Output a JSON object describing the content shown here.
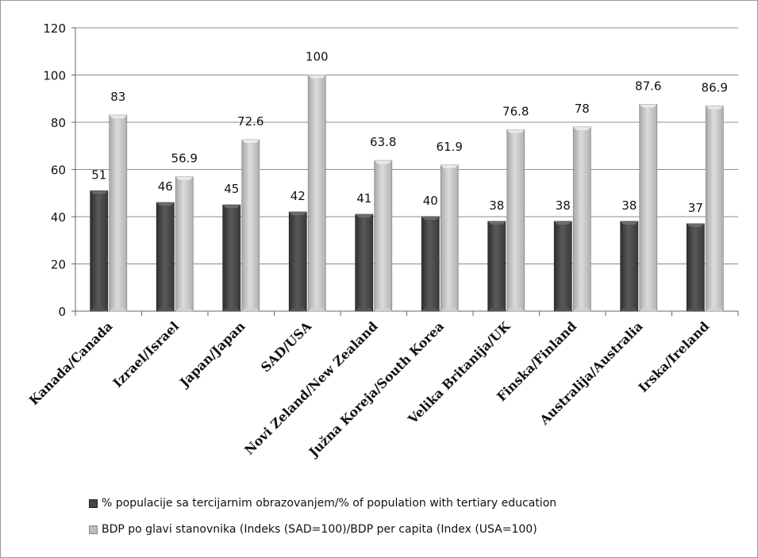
{
  "chart_data": {
    "type": "bar",
    "categories": [
      "Kanada/Canada",
      "Izrael/Israel",
      "Japan/Japan",
      "SAD/USA",
      "Novi Zeland/New Zealand",
      "Južna Koreja/South Korea",
      "Velika Britanija/UK",
      "Finska/Finland",
      "Australija/Australia",
      "Irska/Ireland"
    ],
    "series": [
      {
        "name": "% populacije sa tercijarnim obrazovanjem/% of population with tertiary education",
        "color": "#454545",
        "values": [
          51,
          46,
          45,
          42,
          41,
          40,
          38,
          38,
          38,
          37
        ],
        "labels": [
          "51",
          "46",
          "45",
          "42",
          "41",
          "40",
          "38",
          "38",
          "38",
          "37"
        ]
      },
      {
        "name": "BDP po glavi stanovnika (Indeks (SAD=100)/BDP per capita (Index (USA=100)",
        "color": "#bdbdbd",
        "values": [
          83,
          56.9,
          72.6,
          100,
          63.8,
          61.9,
          76.8,
          78,
          87.6,
          86.9
        ],
        "labels": [
          "83",
          "56.9",
          "72.6",
          "100",
          "63.8",
          "61.9",
          "76.8",
          "78",
          "87.6",
          "86.9"
        ]
      }
    ],
    "yticks": [
      "0",
      "20",
      "40",
      "60",
      "80",
      "100",
      "120"
    ],
    "ylim": [
      0,
      120
    ],
    "grid": true,
    "legend_position": "bottom"
  }
}
